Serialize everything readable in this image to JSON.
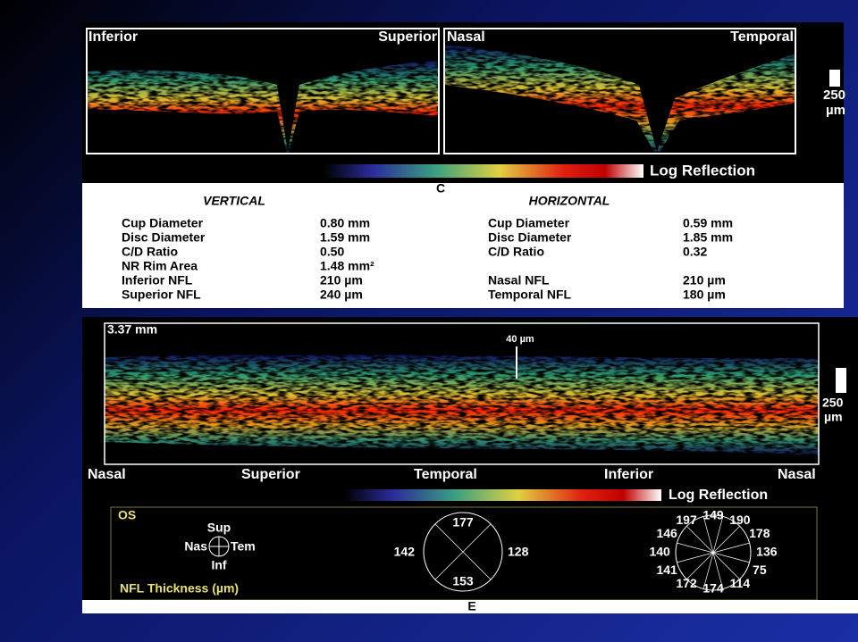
{
  "top_scan": {
    "labels": [
      "Inferior",
      "Superior",
      "Nasal",
      "Temporal"
    ],
    "scale": {
      "value": "250",
      "unit": "µm"
    },
    "colorbar_label": "Log Reflection",
    "caption": "C"
  },
  "table": {
    "columns": [
      {
        "heading": "VERTICAL",
        "rows": [
          [
            "Cup Diameter",
            "0.80 mm"
          ],
          [
            "Disc Diameter",
            "1.59 mm"
          ],
          [
            "C/D Ratio",
            "0.50"
          ],
          [
            "NR Rim Area",
            "1.48 mm²"
          ],
          [
            "Inferior NFL",
            "210 µm"
          ],
          [
            "Superior NFL",
            "240 µm"
          ]
        ]
      },
      {
        "heading": "HORIZONTAL",
        "rows": [
          [
            "Cup Diameter",
            "0.59 mm"
          ],
          [
            "Disc Diameter",
            "1.85 mm"
          ],
          [
            "C/D Ratio",
            "0.32"
          ],
          [
            "Nasal NFL",
            "210 µm"
          ],
          [
            "Temporal NFL",
            "180 µm"
          ]
        ]
      }
    ]
  },
  "bottom_scan": {
    "length": "3.37 mm",
    "marker": "40 µm",
    "scale": {
      "value": "250",
      "unit": "µm"
    },
    "positions": [
      "Nasal",
      "Superior",
      "Temporal",
      "Inferior",
      "Nasal"
    ],
    "colorbar_label": "Log Reflection"
  },
  "nfl": {
    "eye": "OS",
    "compass": {
      "sup": "Sup",
      "nas": "Nas",
      "tem": "Tem",
      "inf": "Inf"
    },
    "title": "NFL Thickness (µm)",
    "quadrants": {
      "top": "177",
      "left": "142",
      "right": "128",
      "bottom": "153"
    },
    "clock": [
      "149",
      "190",
      "178",
      "136",
      "75",
      "114",
      "174",
      "172",
      "141",
      "140",
      "146",
      "197"
    ]
  },
  "caption": "E"
}
